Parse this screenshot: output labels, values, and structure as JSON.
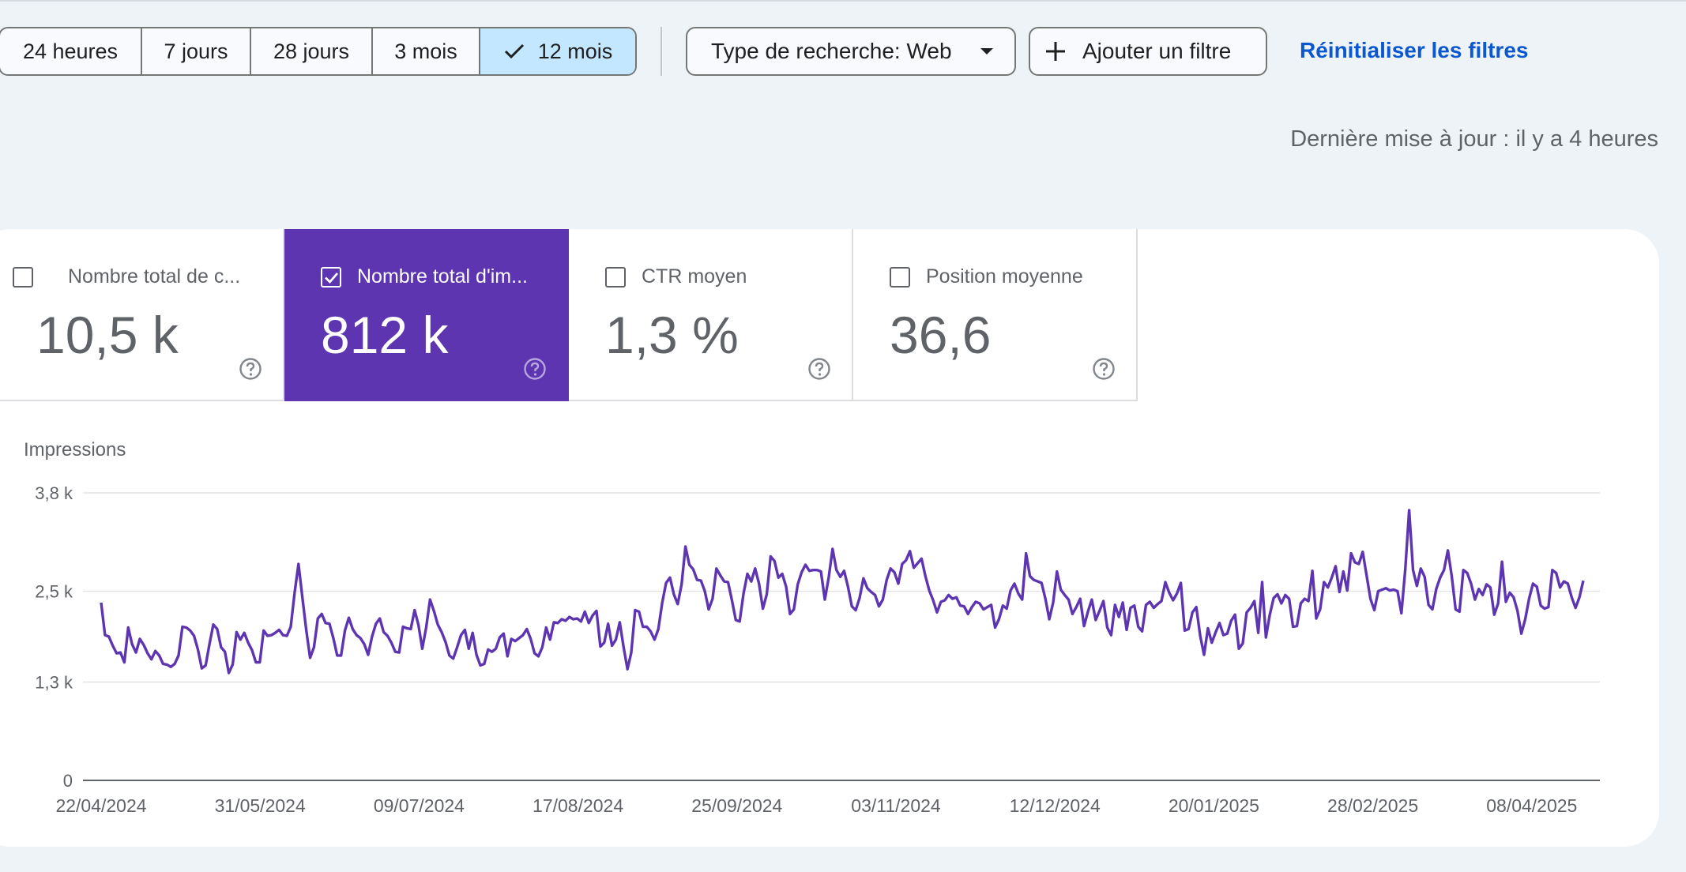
{
  "date_range": {
    "options": [
      "24 heures",
      "7 jours",
      "28 jours",
      "3 mois",
      "12 mois"
    ],
    "selected": "12 mois"
  },
  "filters": {
    "search_type_label": "Type de recherche: Web",
    "add_filter_label": "Ajouter un filtre",
    "reset_label": "Réinitialiser les filtres"
  },
  "last_update": "Dernière mise à jour : il y a 4 heures",
  "metrics": [
    {
      "label": "Nombre total de c...",
      "value": "10,5 k",
      "selected": false
    },
    {
      "label": "Nombre total d'im...",
      "value": "812 k",
      "selected": true
    },
    {
      "label": "CTR moyen",
      "value": "1,3 %",
      "selected": false
    },
    {
      "label": "Position moyenne",
      "value": "36,6",
      "selected": false
    }
  ],
  "colors": {
    "accent": "#5e35b1",
    "line": "#5e35b1",
    "selected_chip": "#c2e7ff",
    "link": "#0b57d0"
  },
  "icons": {
    "check": "check-icon",
    "caret": "chevron-down-icon",
    "plus": "plus-icon",
    "help": "help-icon"
  },
  "chart_data": {
    "type": "line",
    "title": "Impressions",
    "y_ticks": [
      {
        "value": 0,
        "label": "0"
      },
      {
        "value": 1300,
        "label": "1,3 k"
      },
      {
        "value": 2500,
        "label": "2,5 k"
      },
      {
        "value": 3800,
        "label": "3,8 k"
      }
    ],
    "ylim": [
      0,
      3800
    ],
    "x_start": "2024-04-22",
    "x_end": "2025-04-20",
    "x_tick_labels": [
      "22/04/2024",
      "31/05/2024",
      "09/07/2024",
      "17/08/2024",
      "25/09/2024",
      "03/11/2024",
      "12/12/2024",
      "20/01/2025",
      "28/02/2025",
      "08/04/2025"
    ],
    "grid": true,
    "legend": "none",
    "series": [
      {
        "values": [
          2350,
          1920,
          1900,
          1780,
          1680,
          1690,
          1560,
          2020,
          1800,
          1690,
          1870,
          1790,
          1680,
          1600,
          1710,
          1650,
          1540,
          1530,
          1500,
          1540,
          1650,
          2030,
          2020,
          1980,
          1910,
          1730,
          1480,
          1520,
          1800,
          2060,
          2000,
          1760,
          1700,
          1420,
          1530,
          1960,
          1860,
          1950,
          1820,
          1720,
          1560,
          1560,
          1980,
          1910,
          1920,
          1950,
          1990,
          1920,
          1910,
          2030,
          2480,
          2860,
          2420,
          1990,
          1620,
          1760,
          2140,
          2200,
          2080,
          2070,
          1880,
          1650,
          1650,
          1980,
          2150,
          2000,
          1920,
          1880,
          1800,
          1660,
          1900,
          2070,
          2140,
          1960,
          1910,
          1820,
          1700,
          1690,
          2030,
          2010,
          2000,
          2250,
          2050,
          1740,
          2020,
          2390,
          2240,
          2060,
          1960,
          1830,
          1650,
          1610,
          1760,
          1920,
          1990,
          1740,
          1950,
          1660,
          1520,
          1540,
          1730,
          1700,
          1740,
          1890,
          1940,
          1640,
          1870,
          1840,
          1880,
          1920,
          2000,
          1870,
          1680,
          1640,
          1760,
          2020,
          1860,
          2090,
          2080,
          2130,
          2110,
          2160,
          2130,
          2140,
          2100,
          2230,
          2080,
          2180,
          2240,
          1770,
          1820,
          2070,
          1780,
          1860,
          2090,
          1760,
          1470,
          1690,
          2250,
          2230,
          2030,
          2030,
          1970,
          1860,
          2000,
          2350,
          2610,
          2680,
          2460,
          2330,
          2590,
          3090,
          2850,
          2790,
          2650,
          2640,
          2500,
          2260,
          2400,
          2800,
          2710,
          2630,
          2620,
          2380,
          2120,
          2100,
          2470,
          2730,
          2630,
          2800,
          2600,
          2270,
          2460,
          2960,
          2900,
          2680,
          2730,
          2560,
          2200,
          2260,
          2590,
          2750,
          2850,
          2770,
          2780,
          2780,
          2760,
          2390,
          2680,
          3060,
          2780,
          2690,
          2770,
          2560,
          2300,
          2250,
          2410,
          2670,
          2540,
          2490,
          2450,
          2300,
          2390,
          2650,
          2800,
          2750,
          2600,
          2860,
          2910,
          3030,
          2810,
          2870,
          2930,
          2700,
          2510,
          2380,
          2220,
          2360,
          2380,
          2450,
          2400,
          2420,
          2310,
          2300,
          2200,
          2290,
          2360,
          2340,
          2260,
          2290,
          2320,
          2020,
          2130,
          2310,
          2270,
          2510,
          2600,
          2470,
          2390,
          3000,
          2700,
          2650,
          2630,
          2610,
          2400,
          2130,
          2350,
          2760,
          2520,
          2450,
          2390,
          2200,
          2290,
          2400,
          2040,
          2230,
          2390,
          2120,
          2240,
          2370,
          2020,
          1920,
          2320,
          2160,
          2350,
          1990,
          2280,
          2310,
          2030,
          1970,
          2320,
          2360,
          2280,
          2330,
          2370,
          2620,
          2480,
          2380,
          2470,
          2610,
          1980,
          2000,
          2220,
          2290,
          1910,
          1660,
          2010,
          1820,
          1960,
          2080,
          1920,
          1940,
          2110,
          2190,
          1740,
          1810,
          2220,
          2280,
          2370,
          1950,
          2620,
          1890,
          2190,
          2410,
          2460,
          2340,
          2450,
          2400,
          2030,
          2040,
          2340,
          2400,
          2370,
          2770,
          2140,
          2260,
          2620,
          2550,
          2680,
          2830,
          2490,
          2760,
          2510,
          3000,
          2880,
          2860,
          3020,
          2710,
          2400,
          2250,
          2500,
          2520,
          2540,
          2510,
          2520,
          2500,
          2210,
          2790,
          3570,
          2780,
          2570,
          2800,
          2690,
          2320,
          2260,
          2530,
          2680,
          2780,
          3040,
          2700,
          2260,
          2230,
          2780,
          2740,
          2600,
          2390,
          2530,
          2450,
          2590,
          2550,
          2190,
          2340,
          2890,
          2360,
          2480,
          2420,
          2240,
          1940,
          2130,
          2400,
          2600,
          2560,
          2310,
          2270,
          2290,
          2780,
          2740,
          2550,
          2630,
          2600,
          2420,
          2280,
          2420,
          2640
        ]
      }
    ]
  }
}
